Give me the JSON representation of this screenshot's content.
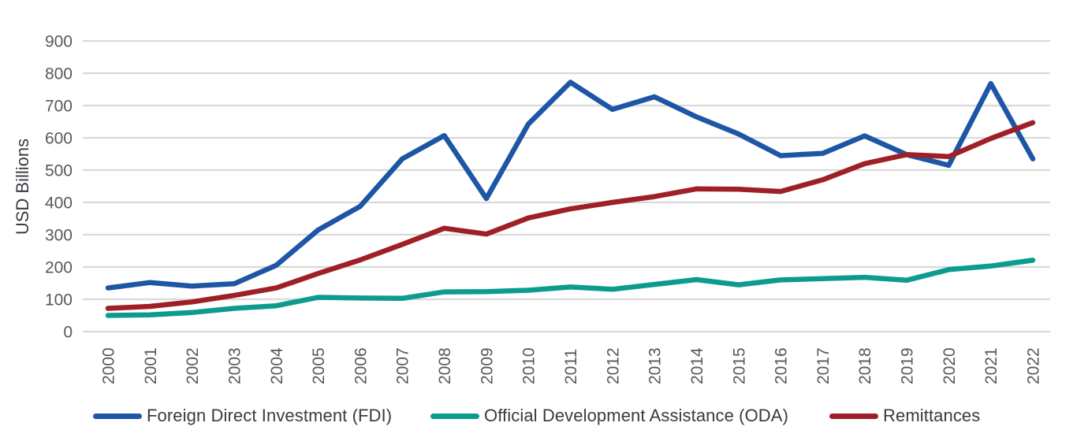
{
  "chart_data": {
    "type": "line",
    "title": "",
    "xlabel": "",
    "ylabel": "USD Billions",
    "ylim": [
      0,
      900
    ],
    "ytick_step": 100,
    "grid": "horizontal",
    "legend_position": "bottom",
    "x": [
      "2000",
      "2001",
      "2002",
      "2003",
      "2004",
      "2005",
      "2006",
      "2007",
      "2008",
      "2009",
      "2010",
      "2011",
      "2012",
      "2013",
      "2014",
      "2015",
      "2016",
      "2017",
      "2018",
      "2019",
      "2020",
      "2021",
      "2022"
    ],
    "series": [
      {
        "name": "Foreign Direct Investment (FDI)",
        "color": "#1d56a5",
        "values": [
          135,
          152,
          141,
          148,
          205,
          315,
          388,
          535,
          607,
          412,
          643,
          772,
          688,
          727,
          665,
          612,
          545,
          552,
          606,
          548,
          515,
          768,
          535
        ]
      },
      {
        "name": "Official Development Assistance (ODA)",
        "color": "#0c9c8d",
        "values": [
          50,
          52,
          59,
          72,
          80,
          106,
          104,
          103,
          123,
          124,
          128,
          138,
          131,
          146,
          161,
          145,
          160,
          164,
          168,
          159,
          192,
          203,
          221
        ]
      },
      {
        "name": "Remittances",
        "color": "#9e2026",
        "values": [
          72,
          78,
          92,
          112,
          135,
          180,
          222,
          270,
          320,
          302,
          352,
          380,
          400,
          418,
          442,
          441,
          434,
          470,
          520,
          548,
          542,
          598,
          647
        ]
      }
    ],
    "palette": {
      "grid_color": "#d9d9d9",
      "tick_text_color": "#595959",
      "axis_title_color": "#3a3a43"
    }
  }
}
